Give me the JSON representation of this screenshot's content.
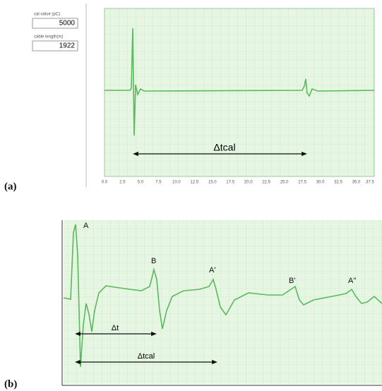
{
  "panel_a": {
    "label": "(a)",
    "fields": [
      {
        "caption": "cal value (pC)",
        "value": "5000"
      },
      {
        "caption": "cable length(m)",
        "value": "1922"
      }
    ],
    "x_tick_labels": [
      "0.0",
      "2.5",
      "5.0",
      "7.5",
      "10.0",
      "12.5",
      "15.0",
      "17.5",
      "20.0",
      "22.5",
      "25.0",
      "27.5",
      "30.0",
      "32.5",
      "35.0",
      "37.5"
    ],
    "arrow_label": "Δtcal"
  },
  "panel_b": {
    "label": "(b)",
    "peaks": [
      "A",
      "B",
      "A'",
      "B'",
      "A''"
    ],
    "arrow_labels": [
      "Δt",
      "Δtcal"
    ]
  }
}
